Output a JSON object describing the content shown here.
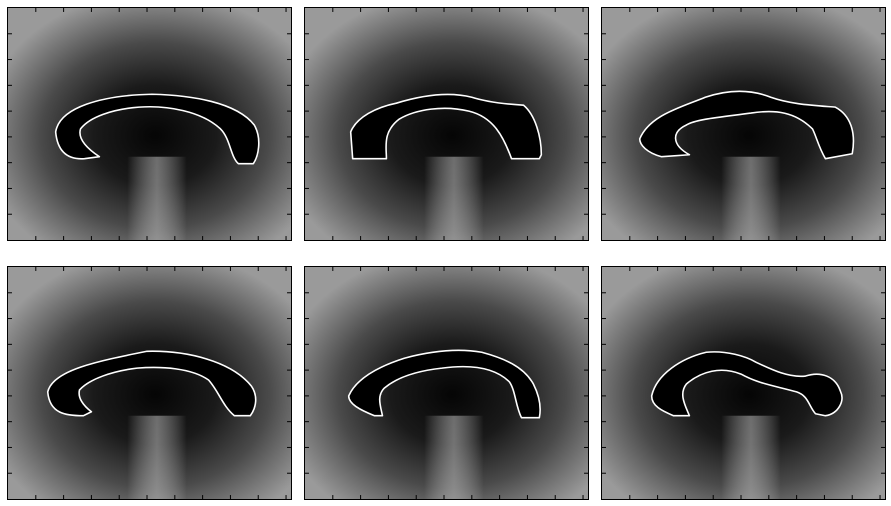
{
  "figure": {
    "type": "image-grid",
    "rows": 2,
    "cols": 3,
    "panels": [
      {
        "variant": "arch-a"
      },
      {
        "variant": "arch-b"
      },
      {
        "variant": "arch-c"
      },
      {
        "variant": "arch-d"
      },
      {
        "variant": "arch-e"
      },
      {
        "variant": "arch-f"
      }
    ],
    "colors": {
      "background": "#ffffff",
      "frame": "#000000",
      "contour": "#ffffff",
      "interior": "#000000"
    }
  }
}
